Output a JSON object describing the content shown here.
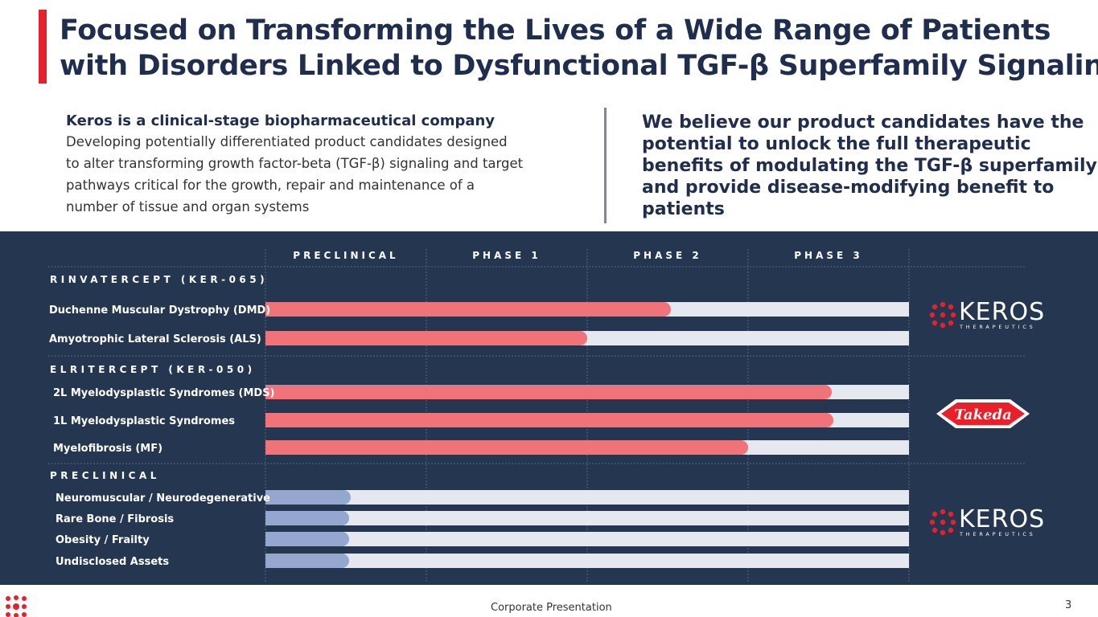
{
  "header": {
    "title": [
      "Focused on Transforming the Lives of a Wide Range of Patients",
      "with Disorders Linked to Dysfunctional TGF-β Superfamily Signaling"
    ]
  },
  "intro": {
    "heading": "Keros is a clinical-stage biopharmaceutical company",
    "body": [
      "Developing potentially differentiated product candidates designed",
      "to alter transforming growth factor-beta (TGF-β) signaling and target",
      "pathways critical for the growth, repair and maintenance of a",
      "number of tissue and organ systems"
    ]
  },
  "statement": [
    "We believe our product candidates have the",
    "potential to unlock the full therapeutic",
    "benefits of modulating the TGF-β superfamily",
    "and provide disease-modifying benefit to",
    "patients"
  ],
  "pipeline": {
    "phases": [
      "PRECLINICAL",
      "PHASE 1",
      "PHASE 2",
      "PHASE 3"
    ],
    "groups": [
      {
        "name": "RINVATERCEPT (KER-065)",
        "partner": {
          "name": "KEROS",
          "sub": "THERAPEUTICS"
        },
        "rows": [
          {
            "label": "Duchenne Muscular Dystrophy (DMD)",
            "progress": 2.52
          },
          {
            "label": "Amyotrophic Lateral Sclerosis (ALS)",
            "progress": 2.0
          }
        ]
      },
      {
        "name": "ELRITERCEPT (KER-050)",
        "partner": {
          "name": "Takeda"
        },
        "rows": [
          {
            "label": "2L Myelodysplastic Syndromes (MDS)",
            "progress": 3.52
          },
          {
            "label": "1L Myelodysplastic Syndromes",
            "progress": 3.53
          },
          {
            "label": "Myelofibrosis (MF)",
            "progress": 3.0
          }
        ]
      },
      {
        "name": "PRECLINICAL",
        "partner": {
          "name": "KEROS",
          "sub": "THERAPEUTICS"
        },
        "rows": [
          {
            "label": "Neuromuscular / Neurodegenerative",
            "progress": 0.53
          },
          {
            "label": "Rare Bone / Fibrosis",
            "progress": 0.52
          },
          {
            "label": "Obesity / Frailty",
            "progress": 0.52
          },
          {
            "label": "Undisclosed Assets",
            "progress": 0.52
          }
        ]
      }
    ]
  },
  "footer": {
    "text": "Corporate Presentation",
    "page": 3
  }
}
